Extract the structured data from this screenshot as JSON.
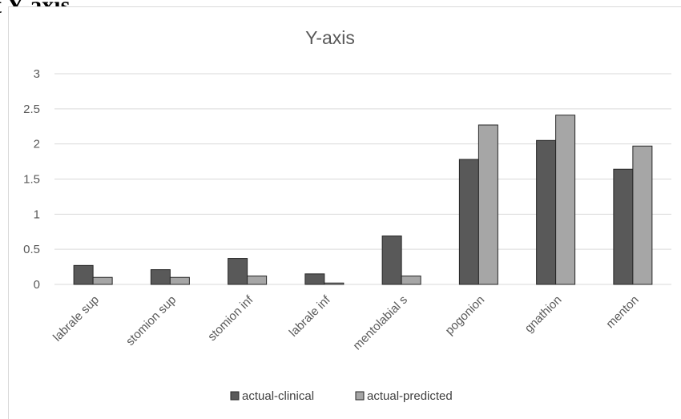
{
  "page": {
    "heading": "t Y-axis"
  },
  "chart_data": {
    "type": "bar",
    "title": "Y-axis",
    "xlabel": "",
    "ylabel": "",
    "ylim": [
      0,
      3
    ],
    "yticks": [
      "0",
      "0.5",
      "1",
      "1.5",
      "2",
      "2.5",
      "3"
    ],
    "grid": true,
    "legend": "bottom",
    "categories": [
      "labrale sup",
      "stomion sup",
      "stomion inf",
      "labrale inf",
      "mentolabial s",
      "pogonion",
      "gnathion",
      "menton"
    ],
    "series": [
      {
        "name": "actual-clinical",
        "color": "#595959",
        "values": [
          0.27,
          0.21,
          0.37,
          0.15,
          0.69,
          1.78,
          2.05,
          1.64
        ]
      },
      {
        "name": "actual-predicted",
        "color": "#a6a6a6",
        "values": [
          0.1,
          0.1,
          0.12,
          0.02,
          0.12,
          2.27,
          2.41,
          1.97
        ]
      }
    ]
  }
}
